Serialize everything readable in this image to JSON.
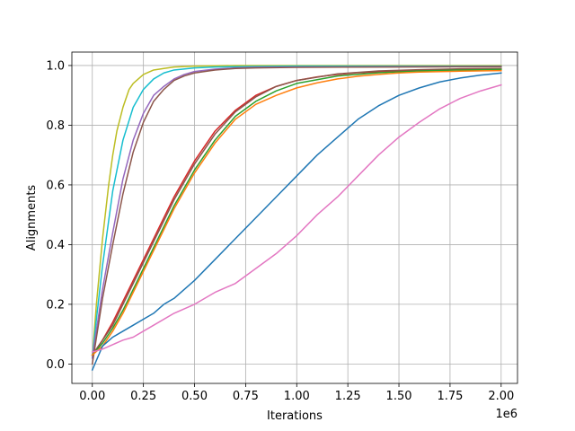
{
  "chart_data": {
    "type": "line",
    "title": "",
    "xlabel": "Iterations",
    "ylabel": "Alignments",
    "x_offset_text": "1e6",
    "xlim": [
      -0.1,
      2.08
    ],
    "ylim": [
      -0.065,
      1.045
    ],
    "grid": true,
    "legend": "none",
    "x_ticks": [
      0.0,
      0.25,
      0.5,
      0.75,
      1.0,
      1.25,
      1.5,
      1.75,
      2.0
    ],
    "x_tick_labels": [
      "0.00",
      "0.25",
      "0.50",
      "0.75",
      "1.00",
      "1.25",
      "1.50",
      "1.75",
      "2.00"
    ],
    "y_ticks": [
      0.0,
      0.2,
      0.4,
      0.6,
      0.8,
      1.0
    ],
    "y_tick_labels": [
      "0.0",
      "0.2",
      "0.4",
      "0.6",
      "0.8",
      "1.0"
    ],
    "series": [
      {
        "color": "#bcbd22",
        "x": [
          0.0,
          0.02,
          0.05,
          0.08,
          0.1,
          0.12,
          0.15,
          0.18,
          0.2,
          0.25,
          0.3,
          0.35,
          0.4,
          0.5,
          0.7,
          1.0,
          1.5,
          2.0
        ],
        "y": [
          0.02,
          0.2,
          0.42,
          0.6,
          0.7,
          0.78,
          0.86,
          0.92,
          0.94,
          0.97,
          0.985,
          0.99,
          0.995,
          0.998,
          1.0,
          1.0,
          1.0,
          1.0
        ]
      },
      {
        "color": "#17becf",
        "x": [
          0.0,
          0.02,
          0.05,
          0.1,
          0.15,
          0.2,
          0.25,
          0.3,
          0.35,
          0.4,
          0.5,
          0.6,
          0.8,
          1.0,
          1.5,
          2.0
        ],
        "y": [
          0.02,
          0.15,
          0.33,
          0.58,
          0.75,
          0.86,
          0.92,
          0.955,
          0.975,
          0.985,
          0.992,
          0.995,
          0.997,
          0.998,
          0.998,
          0.998
        ]
      },
      {
        "color": "#9467bd",
        "x": [
          0.0,
          0.05,
          0.1,
          0.15,
          0.2,
          0.25,
          0.3,
          0.35,
          0.4,
          0.45,
          0.5,
          0.6,
          0.7,
          0.8,
          1.0,
          1.5,
          2.0
        ],
        "y": [
          0.02,
          0.25,
          0.44,
          0.62,
          0.75,
          0.84,
          0.9,
          0.93,
          0.955,
          0.97,
          0.98,
          0.988,
          0.992,
          0.994,
          0.995,
          0.996,
          0.997
        ]
      },
      {
        "color": "#8c564b",
        "x": [
          0.0,
          0.05,
          0.1,
          0.15,
          0.2,
          0.25,
          0.3,
          0.35,
          0.4,
          0.45,
          0.5,
          0.6,
          0.7,
          0.8,
          1.0,
          1.5,
          2.0
        ],
        "y": [
          0.0,
          0.22,
          0.4,
          0.57,
          0.71,
          0.81,
          0.88,
          0.92,
          0.95,
          0.965,
          0.975,
          0.985,
          0.99,
          0.992,
          0.994,
          0.995,
          0.996
        ]
      },
      {
        "color": "#d62728",
        "x": [
          0.0,
          0.05,
          0.1,
          0.15,
          0.2,
          0.25,
          0.3,
          0.4,
          0.5,
          0.6,
          0.7,
          0.8,
          0.9,
          1.0,
          1.1,
          1.2,
          1.3,
          1.5,
          1.75,
          2.0
        ],
        "y": [
          0.03,
          0.08,
          0.14,
          0.21,
          0.28,
          0.35,
          0.42,
          0.56,
          0.68,
          0.78,
          0.85,
          0.9,
          0.93,
          0.95,
          0.962,
          0.97,
          0.976,
          0.982,
          0.985,
          0.988
        ]
      },
      {
        "color": "#8c564b",
        "x": [
          0.0,
          0.05,
          0.1,
          0.15,
          0.2,
          0.25,
          0.3,
          0.4,
          0.5,
          0.6,
          0.7,
          0.8,
          0.9,
          1.0,
          1.2,
          1.4,
          1.6,
          1.8,
          2.0
        ],
        "y": [
          0.03,
          0.08,
          0.13,
          0.2,
          0.27,
          0.34,
          0.41,
          0.55,
          0.67,
          0.77,
          0.845,
          0.895,
          0.93,
          0.95,
          0.972,
          0.982,
          0.986,
          0.989,
          0.99
        ]
      },
      {
        "color": "#2ca02c",
        "x": [
          0.0,
          0.05,
          0.1,
          0.15,
          0.2,
          0.25,
          0.3,
          0.4,
          0.5,
          0.6,
          0.7,
          0.8,
          0.9,
          1.0,
          1.2,
          1.4,
          1.6,
          1.8,
          2.0
        ],
        "y": [
          0.03,
          0.07,
          0.12,
          0.18,
          0.25,
          0.32,
          0.39,
          0.53,
          0.65,
          0.75,
          0.83,
          0.88,
          0.915,
          0.94,
          0.965,
          0.976,
          0.982,
          0.985,
          0.987
        ]
      },
      {
        "color": "#ff7f0e",
        "x": [
          0.0,
          0.05,
          0.1,
          0.15,
          0.2,
          0.25,
          0.3,
          0.4,
          0.5,
          0.6,
          0.7,
          0.8,
          0.9,
          1.0,
          1.1,
          1.2,
          1.3,
          1.4,
          1.5,
          1.6,
          1.8,
          2.0
        ],
        "y": [
          0.03,
          0.06,
          0.11,
          0.17,
          0.24,
          0.31,
          0.38,
          0.52,
          0.64,
          0.74,
          0.82,
          0.87,
          0.9,
          0.925,
          0.942,
          0.955,
          0.964,
          0.97,
          0.975,
          0.978,
          0.981,
          0.983
        ]
      },
      {
        "color": "#1f77b4",
        "x": [
          0.0,
          0.05,
          0.1,
          0.15,
          0.2,
          0.25,
          0.3,
          0.35,
          0.4,
          0.5,
          0.6,
          0.7,
          0.8,
          0.9,
          1.0,
          1.1,
          1.2,
          1.3,
          1.4,
          1.5,
          1.6,
          1.7,
          1.8,
          1.9,
          2.0
        ],
        "y": [
          -0.02,
          0.06,
          0.09,
          0.11,
          0.13,
          0.15,
          0.17,
          0.2,
          0.22,
          0.28,
          0.35,
          0.42,
          0.49,
          0.56,
          0.63,
          0.7,
          0.76,
          0.82,
          0.865,
          0.9,
          0.925,
          0.945,
          0.958,
          0.968,
          0.975
        ]
      },
      {
        "color": "#e377c2",
        "x": [
          0.0,
          0.05,
          0.1,
          0.15,
          0.2,
          0.25,
          0.3,
          0.4,
          0.5,
          0.6,
          0.7,
          0.8,
          0.9,
          1.0,
          1.1,
          1.2,
          1.3,
          1.4,
          1.5,
          1.6,
          1.7,
          1.8,
          1.9,
          2.0
        ],
        "y": [
          0.04,
          0.05,
          0.065,
          0.08,
          0.09,
          0.11,
          0.13,
          0.17,
          0.2,
          0.24,
          0.27,
          0.32,
          0.37,
          0.43,
          0.5,
          0.56,
          0.63,
          0.7,
          0.76,
          0.81,
          0.855,
          0.89,
          0.915,
          0.935
        ]
      }
    ]
  }
}
